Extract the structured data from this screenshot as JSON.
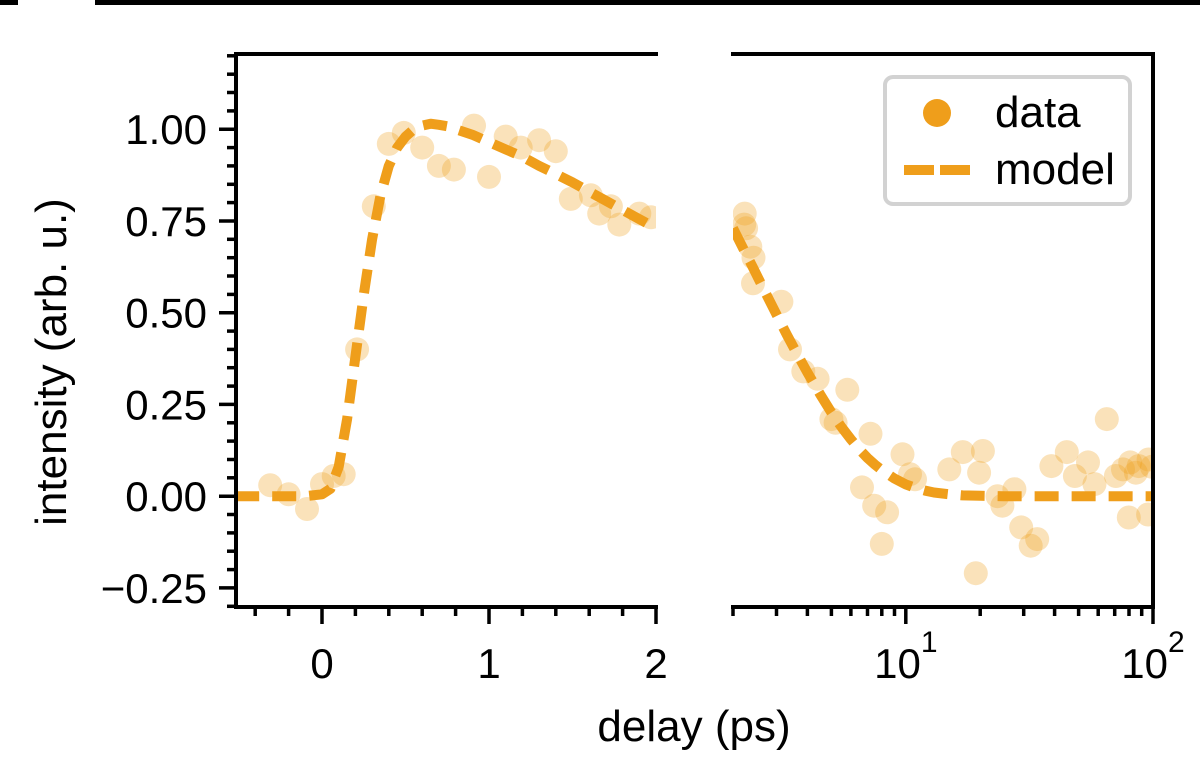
{
  "style": {
    "background": "#ffffff",
    "accent": "#EF9E1B",
    "dot_opacity": 0.3,
    "axis_color": "#000000",
    "legend_border": "#d2d2d2",
    "top_bar_color": "#000000"
  },
  "axes": {
    "ylabel": "intensity (arb. u.)",
    "xlabel": "delay (ps)"
  },
  "legend": {
    "entries": [
      {
        "marker": "circle",
        "label": "data"
      },
      {
        "marker": "dashed-line",
        "label": "model"
      }
    ]
  },
  "chart_data": {
    "type": "scatter",
    "title": "",
    "xlabel": "delay (ps)",
    "ylabel": "intensity (arb. u.)",
    "ylim": [
      -0.302,
      1.205
    ],
    "y_major_ticks": [
      1.0,
      0.75,
      0.5,
      0.25,
      0.0,
      -0.25
    ],
    "y_tick_labels": [
      "1.00",
      "0.75",
      "0.50",
      "0.25",
      "0.00",
      "−0.25"
    ],
    "y_minor_step": 0.05,
    "legend_position": "upper right",
    "grid": false,
    "panels": [
      {
        "id": "left",
        "scale": "linear",
        "xlim": [
          -0.515,
          2.0
        ],
        "x_major_ticks": [
          0,
          1,
          2
        ],
        "x_tick_labels": [
          "0",
          "1",
          "2"
        ],
        "x_minor_ticks": [
          -0.4,
          -0.2,
          0.2,
          0.4,
          0.6,
          0.8,
          1.2,
          1.4,
          1.6,
          1.8
        ],
        "series": [
          {
            "name": "data",
            "type": "scatter",
            "x": [
              -0.31,
              -0.2,
              -0.09,
              0.0,
              0.07,
              0.13,
              0.21,
              0.31,
              0.4,
              0.49,
              0.6,
              0.7,
              0.79,
              0.91,
              1.0,
              1.1,
              1.19,
              1.3,
              1.4,
              1.49,
              1.61,
              1.66,
              1.73,
              1.78,
              1.9,
              1.97
            ],
            "y": [
              0.03,
              0.005,
              -0.035,
              0.033,
              0.055,
              0.06,
              0.4,
              0.79,
              0.96,
              0.99,
              0.95,
              0.9,
              0.89,
              1.01,
              0.87,
              0.98,
              0.95,
              0.97,
              0.94,
              0.81,
              0.82,
              0.77,
              0.79,
              0.74,
              0.77,
              0.76
            ]
          },
          {
            "name": "model",
            "type": "line",
            "style": "dashed",
            "x": [
              -0.52,
              -0.4,
              -0.3,
              -0.2,
              -0.1,
              0.0,
              0.05,
              0.1,
              0.15,
              0.2,
              0.25,
              0.3,
              0.35,
              0.4,
              0.45,
              0.5,
              0.55,
              0.6,
              0.65,
              0.7,
              0.75,
              0.8,
              0.9,
              1.0,
              1.1,
              1.2,
              1.3,
              1.4,
              1.5,
              1.6,
              1.7,
              1.8,
              1.9,
              2.0
            ],
            "y": [
              0,
              0,
              0,
              0,
              0,
              0.005,
              0.02,
              0.08,
              0.21,
              0.38,
              0.55,
              0.7,
              0.82,
              0.9,
              0.95,
              0.98,
              1.0,
              1.01,
              1.015,
              1.012,
              1.008,
              1.0,
              0.985,
              0.965,
              0.945,
              0.925,
              0.9,
              0.878,
              0.855,
              0.83,
              0.805,
              0.78,
              0.755,
              0.73
            ]
          }
        ]
      },
      {
        "id": "right",
        "scale": "log",
        "xlim": [
          2,
          100
        ],
        "x_major_ticks": [
          10,
          100
        ],
        "x_tick_labels": [
          {
            "base": "10",
            "exp": "1"
          },
          {
            "base": "10",
            "exp": "2"
          }
        ],
        "x_minor_ticks": [
          2,
          3,
          4,
          5,
          6,
          7,
          8,
          9,
          20,
          30,
          40,
          50,
          60,
          70,
          80,
          90
        ],
        "series": [
          {
            "name": "data",
            "type": "scatter",
            "x": [
              2.23,
              2.22,
              2.26,
              2.35,
              2.42,
              2.41,
              3.14,
              3.4,
              3.85,
              4.4,
              5.0,
              5.2,
              5.8,
              6.65,
              7.2,
              7.45,
              8.0,
              8.4,
              9.7,
              10.4,
              10.9,
              15.0,
              17.0,
              19.2,
              19.8,
              20.5,
              23.5,
              24.6,
              27.5,
              29.3,
              32.0,
              34.0,
              38.8,
              44.8,
              48.3,
              54.6,
              58.0,
              65.0,
              70.8,
              75.6,
              79.8,
              80.9,
              85.3,
              87.5,
              95.5,
              96.0,
              99.0
            ],
            "y": [
              0.77,
              0.74,
              0.73,
              0.68,
              0.65,
              0.58,
              0.53,
              0.4,
              0.34,
              0.32,
              0.21,
              0.2,
              0.29,
              0.024,
              0.17,
              -0.026,
              -0.13,
              -0.044,
              0.114,
              0.06,
              0.046,
              0.073,
              0.12,
              -0.21,
              0.064,
              0.123,
              0.0,
              -0.026,
              0.019,
              -0.085,
              -0.135,
              -0.117,
              0.082,
              0.12,
              0.055,
              0.092,
              0.033,
              0.21,
              0.055,
              0.073,
              -0.058,
              0.092,
              0.064,
              0.082,
              -0.05,
              0.1,
              0.08
            ]
          },
          {
            "name": "model",
            "type": "line",
            "style": "dashed",
            "x": [
              2.0,
              2.2,
              2.4,
              2.6,
              2.8,
              3.0,
              3.3,
              3.6,
              4.0,
              4.5,
              5.0,
              5.5,
              6.0,
              6.5,
              7.0,
              7.5,
              8.0,
              9.0,
              10,
              11,
              12,
              13,
              15,
              17,
              20,
              25,
              30,
              40,
              60,
              80,
              100
            ],
            "y": [
              0.73,
              0.675,
              0.625,
              0.578,
              0.535,
              0.495,
              0.44,
              0.393,
              0.337,
              0.278,
              0.228,
              0.188,
              0.155,
              0.127,
              0.104,
              0.086,
              0.071,
              0.048,
              0.032,
              0.022,
              0.015,
              0.01,
              0.005,
              0.002,
              0.001,
              0.0,
              0.0,
              0.0,
              0.0,
              0.0,
              0.0
            ]
          }
        ]
      }
    ]
  }
}
